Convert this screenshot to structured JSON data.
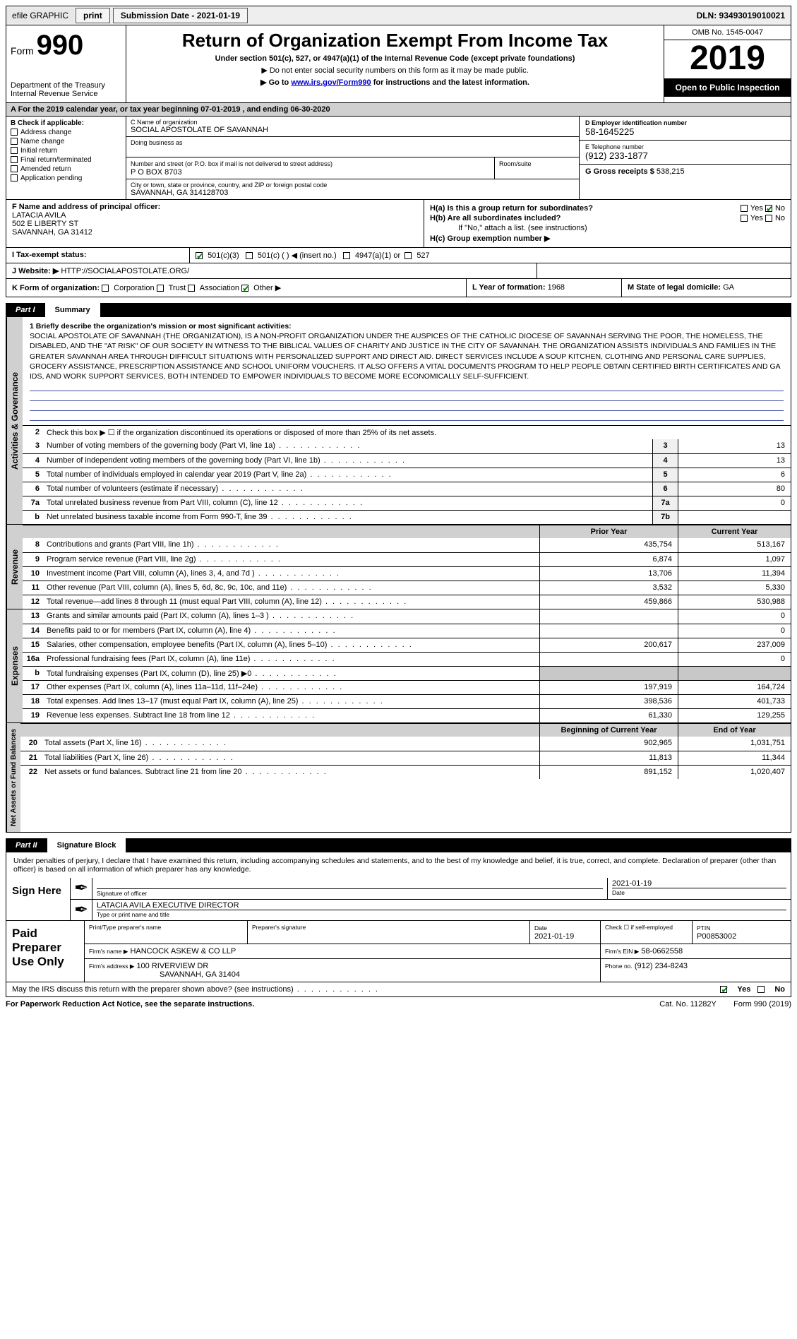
{
  "topbar": {
    "efile": "efile GRAPHIC",
    "print": "print",
    "subm_lbl": "Submission Date - 2021-01-19",
    "dln": "DLN: 93493019010021"
  },
  "header": {
    "form_word": "Form",
    "num": "990",
    "title": "Return of Organization Exempt From Income Tax",
    "subtitle": "Under section 501(c), 527, or 4947(a)(1) of the Internal Revenue Code (except private foundations)",
    "arrow1": "▶ Do not enter social security numbers on this form as it may be made public.",
    "arrow2_pre": "▶ Go to ",
    "arrow2_link": "www.irs.gov/Form990",
    "arrow2_post": " for instructions and the latest information.",
    "dept": "Department of the Treasury\nInternal Revenue Service",
    "omb": "OMB No. 1545-0047",
    "year": "2019",
    "open_pub": "Open to Public Inspection"
  },
  "period": "A For the 2019 calendar year, or tax year beginning 07-01-2019   , and ending 06-30-2020",
  "B": {
    "label": "B Check if applicable:",
    "items": [
      "Address change",
      "Name change",
      "Initial return",
      "Final return/terminated",
      "Amended return",
      "Application pending"
    ]
  },
  "C": {
    "name_lbl": "C Name of organization",
    "name": "SOCIAL APOSTOLATE OF SAVANNAH",
    "dba_lbl": "Doing business as",
    "addr_lbl": "Number and street (or P.O. box if mail is not delivered to street address)",
    "addr": "P O BOX 8703",
    "room_lbl": "Room/suite",
    "city_lbl": "City or town, state or province, country, and ZIP or foreign postal code",
    "city": "SAVANNAH, GA  314128703"
  },
  "D": {
    "lbl": "D Employer identification number",
    "val": "58-1645225"
  },
  "E": {
    "lbl": "E Telephone number",
    "val": "(912) 233-1877"
  },
  "G": {
    "lbl": "G Gross receipts $",
    "val": "538,215"
  },
  "F": {
    "lbl": "F  Name and address of principal officer:",
    "name": "LATACIA AVILA",
    "a1": "502 E LIBERTY ST",
    "a2": "SAVANNAH, GA  31412"
  },
  "H": {
    "a": "H(a)  Is this a group return for subordinates?",
    "b": "H(b)  Are all subordinates included?",
    "b2": "If \"No,\" attach a list. (see instructions)",
    "c": "H(c)  Group exemption number ▶",
    "yes": "Yes",
    "no": "No"
  },
  "I": {
    "lbl": "I  Tax-exempt status:",
    "o1": "501(c)(3)",
    "o2": "501(c) (  ) ◀ (insert no.)",
    "o3": "4947(a)(1) or",
    "o4": "527"
  },
  "J": {
    "lbl": "J  Website: ▶",
    "val": "HTTP://SOCIALAPOSTOLATE.ORG/"
  },
  "K": {
    "lbl": "K Form of organization:",
    "o1": "Corporation",
    "o2": "Trust",
    "o3": "Association",
    "o4": "Other ▶"
  },
  "L": {
    "lbl": "L Year of formation:",
    "val": "1968"
  },
  "M": {
    "lbl": "M State of legal domicile:",
    "val": "GA"
  },
  "partI": {
    "tag": "Part I",
    "title": "Summary"
  },
  "mission": {
    "lead": "1  Briefly describe the organization's mission or most significant activities:",
    "body": "SOCIAL APOSTOLATE OF SAVANNAH (THE ORGANIZATION), IS A NON-PROFIT ORGANIZATION UNDER THE AUSPICES OF THE CATHOLIC DIOCESE OF SAVANNAH SERVING THE POOR, THE HOMELESS, THE DISABLED, AND THE \"AT RISK\" OF OUR SOCIETY IN WITNESS TO THE BIBLICAL VALUES OF CHARITY AND JUSTICE IN THE CITY OF SAVANNAH. THE ORGANIZATION ASSISTS INDIVIDUALS AND FAMILIES IN THE GREATER SAVANNAH AREA THROUGH DIFFICULT SITUATIONS WITH PERSONALIZED SUPPORT AND DIRECT AID. DIRECT SERVICES INCLUDE A SOUP KITCHEN, CLOTHING AND PERSONAL CARE SUPPLIES, GROCERY ASSISTANCE, PRESCRIPTION ASSISTANCE AND SCHOOL UNIFORM VOUCHERS. IT ALSO OFFERS A VITAL DOCUMENTS PROGRAM TO HELP PEOPLE OBTAIN CERTIFIED BIRTH CERTIFICATES AND GA IDS, AND WORK SUPPORT SERVICES, BOTH INTENDED TO EMPOWER INDIVIDUALS TO BECOME MORE ECONOMICALLY SELF-SUFFICIENT."
  },
  "gov": {
    "side": "Activities & Governance",
    "l2": "Check this box ▶ ☐ if the organization discontinued its operations or disposed of more than 25% of its net assets.",
    "rows": [
      {
        "n": "3",
        "d": "Number of voting members of the governing body (Part VI, line 1a)",
        "box": "3",
        "v": "13"
      },
      {
        "n": "4",
        "d": "Number of independent voting members of the governing body (Part VI, line 1b)",
        "box": "4",
        "v": "13"
      },
      {
        "n": "5",
        "d": "Total number of individuals employed in calendar year 2019 (Part V, line 2a)",
        "box": "5",
        "v": "6"
      },
      {
        "n": "6",
        "d": "Total number of volunteers (estimate if necessary)",
        "box": "6",
        "v": "80"
      },
      {
        "n": "7a",
        "d": "Total unrelated business revenue from Part VIII, column (C), line 12",
        "box": "7a",
        "v": "0"
      },
      {
        "n": "b",
        "d": "Net unrelated business taxable income from Form 990-T, line 39",
        "box": "7b",
        "v": ""
      }
    ]
  },
  "rev": {
    "side": "Revenue",
    "hdr1": "Prior Year",
    "hdr2": "Current Year",
    "rows": [
      {
        "n": "8",
        "d": "Contributions and grants (Part VIII, line 1h)",
        "p": "435,754",
        "c": "513,167"
      },
      {
        "n": "9",
        "d": "Program service revenue (Part VIII, line 2g)",
        "p": "6,874",
        "c": "1,097"
      },
      {
        "n": "10",
        "d": "Investment income (Part VIII, column (A), lines 3, 4, and 7d )",
        "p": "13,706",
        "c": "11,394"
      },
      {
        "n": "11",
        "d": "Other revenue (Part VIII, column (A), lines 5, 6d, 8c, 9c, 10c, and 11e)",
        "p": "3,532",
        "c": "5,330"
      },
      {
        "n": "12",
        "d": "Total revenue—add lines 8 through 11 (must equal Part VIII, column (A), line 12)",
        "p": "459,866",
        "c": "530,988"
      }
    ]
  },
  "exp": {
    "side": "Expenses",
    "rows": [
      {
        "n": "13",
        "d": "Grants and similar amounts paid (Part IX, column (A), lines 1–3 )",
        "p": "",
        "c": "0"
      },
      {
        "n": "14",
        "d": "Benefits paid to or for members (Part IX, column (A), line 4)",
        "p": "",
        "c": "0"
      },
      {
        "n": "15",
        "d": "Salaries, other compensation, employee benefits (Part IX, column (A), lines 5–10)",
        "p": "200,617",
        "c": "237,009"
      },
      {
        "n": "16a",
        "d": "Professional fundraising fees (Part IX, column (A), line 11e)",
        "p": "",
        "c": "0"
      },
      {
        "n": "b",
        "d": "Total fundraising expenses (Part IX, column (D), line 25) ▶0",
        "p": "GREY",
        "c": "GREY"
      },
      {
        "n": "17",
        "d": "Other expenses (Part IX, column (A), lines 11a–11d, 11f–24e)",
        "p": "197,919",
        "c": "164,724"
      },
      {
        "n": "18",
        "d": "Total expenses. Add lines 13–17 (must equal Part IX, column (A), line 25)",
        "p": "398,536",
        "c": "401,733"
      },
      {
        "n": "19",
        "d": "Revenue less expenses. Subtract line 18 from line 12",
        "p": "61,330",
        "c": "129,255"
      }
    ]
  },
  "net": {
    "side": "Net Assets or Fund Balances",
    "hdr1": "Beginning of Current Year",
    "hdr2": "End of Year",
    "rows": [
      {
        "n": "20",
        "d": "Total assets (Part X, line 16)",
        "p": "902,965",
        "c": "1,031,751"
      },
      {
        "n": "21",
        "d": "Total liabilities (Part X, line 26)",
        "p": "11,813",
        "c": "11,344"
      },
      {
        "n": "22",
        "d": "Net assets or fund balances. Subtract line 21 from line 20",
        "p": "891,152",
        "c": "1,020,407"
      }
    ]
  },
  "partII": {
    "tag": "Part II",
    "title": "Signature Block"
  },
  "sig": {
    "decl": "Under penalties of perjury, I declare that I have examined this return, including accompanying schedules and statements, and to the best of my knowledge and belief, it is true, correct, and complete. Declaration of preparer (other than officer) is based on all information of which preparer has any knowledge.",
    "here": "Sign Here",
    "sig_lbl": "Signature of officer",
    "date_lbl": "Date",
    "date": "2021-01-19",
    "name": "LATACIA AVILA  EXECUTIVE DIRECTOR",
    "name_lbl": "Type or print name and title"
  },
  "prep": {
    "side": "Paid Preparer Use Only",
    "c1": "Print/Type preparer's name",
    "c2": "Preparer's signature",
    "c3_lbl": "Date",
    "c3": "2021-01-19",
    "c4": "Check ☐ if self-employed",
    "c5_lbl": "PTIN",
    "c5": "P00853002",
    "firm_lbl": "Firm's name   ▶",
    "firm": "HANCOCK ASKEW & CO LLP",
    "ein_lbl": "Firm's EIN ▶",
    "ein": "58-0662558",
    "addr_lbl": "Firm's address ▶",
    "addr1": "100 RIVERVIEW DR",
    "addr2": "SAVANNAH, GA  31404",
    "ph_lbl": "Phone no.",
    "ph": "(912) 234-8243"
  },
  "footer": {
    "q": "May the IRS discuss this return with the preparer shown above? (see instructions)",
    "yes": "Yes",
    "no": "No",
    "pra": "For Paperwork Reduction Act Notice, see the separate instructions.",
    "cat": "Cat. No. 11282Y",
    "form": "Form 990 (2019)"
  }
}
